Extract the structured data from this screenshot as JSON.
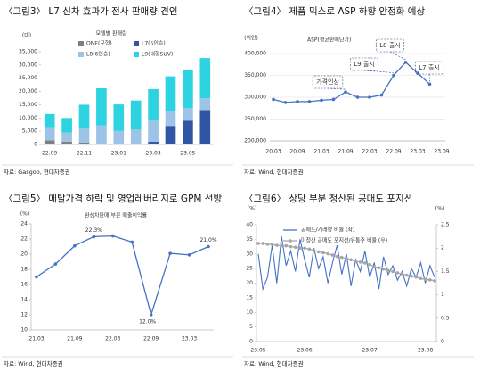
{
  "chart_data": [
    {
      "type": "bar",
      "stacked": true,
      "title": "〈그림3〉 L7 신차 효과가 전사 판매량 견인",
      "unit": "(대)",
      "legend_title": "모델별 판매량",
      "source": "자료: Gasgoo, 현대차증권",
      "categories": [
        "22.09",
        null,
        "22.11",
        null,
        "23.01",
        null,
        "23.03",
        null,
        "23.05",
        null
      ],
      "series": [
        {
          "name": "ONE(구형)",
          "color": "#7f7f7f",
          "values": [
            1500,
            1000,
            700,
            300,
            100,
            0,
            0,
            0,
            0,
            0
          ]
        },
        {
          "name": "L7(5인승)",
          "color": "#2f55a4",
          "values": [
            0,
            0,
            0,
            0,
            0,
            0,
            1000,
            7000,
            9000,
            13000
          ]
        },
        {
          "name": "L8(6인승)",
          "color": "#9dc3e6",
          "values": [
            5000,
            3500,
            5300,
            6900,
            5000,
            5600,
            8000,
            5500,
            4800,
            4500
          ]
        },
        {
          "name": "L9(대형SUV)",
          "color": "#2dd3e0",
          "values": [
            5000,
            5500,
            9000,
            14000,
            10000,
            11000,
            11900,
            13200,
            14500,
            15100
          ]
        }
      ],
      "ylim": [
        0,
        35000
      ],
      "yticks": [
        0,
        {
          "value": 5000,
          "label": "5,000"
        },
        {
          "value": 10000,
          "label": "10,000"
        },
        {
          "value": 15000,
          "label": "15,000"
        },
        {
          "value": 20000,
          "label": "20,000"
        },
        {
          "value": 25000,
          "label": "25,000"
        },
        {
          "value": 30000,
          "label": "30,000"
        },
        {
          "value": 35000,
          "label": "35,000"
        }
      ],
      "grid": false
    },
    {
      "type": "line",
      "title": "〈그림4〉 제품 믹스로 ASP 하향 안정화 예상",
      "unit": "(위안)",
      "source": "자료: Wind, 현대차증권",
      "categories": [
        "20.03",
        null,
        "20.09",
        null,
        "21.03",
        null,
        "21.09",
        null,
        "22.03",
        null,
        "22.09",
        null,
        "23.03",
        null,
        "23.09"
      ],
      "series": [
        {
          "name": "ASP(평균판매단가)",
          "color": "#4472c4",
          "marker": true,
          "values": [
            295000,
            288000,
            290000,
            290000,
            293000,
            295000,
            312000,
            300000,
            300000,
            305000,
            350000,
            380000,
            355000,
            330000,
            null
          ]
        }
      ],
      "annotations": [
        "가격인상",
        "L9 출시",
        "L8 출시",
        "L7 출시"
      ],
      "ylim": [
        200000,
        400000
      ],
      "yticks": [
        {
          "value": 200000,
          "label": "200,000"
        },
        {
          "value": 250000,
          "label": "250,000"
        },
        {
          "value": 300000,
          "label": "300,000"
        },
        {
          "value": 350000,
          "label": "350,000"
        },
        {
          "value": 400000,
          "label": "400,000"
        }
      ],
      "grid": true
    },
    {
      "type": "line",
      "title": "〈그림5〉 메탈가격 하락 및 영업레버리지로 GPM 선방",
      "unit": "(%)",
      "source": "자료: Wind, 현대차증권",
      "categories": [
        "21.03",
        null,
        "21.09",
        null,
        "22.03",
        null,
        "22.09",
        null,
        "23.03",
        null
      ],
      "series": [
        {
          "name": "완성차판매 부문 매출이익률",
          "color": "#4472c4",
          "marker": true,
          "values": [
            17.0,
            18.7,
            21.1,
            22.3,
            22.4,
            21.6,
            12.0,
            20.1,
            19.9,
            21.0
          ],
          "value_labels": [
            null,
            null,
            null,
            "22.3%",
            null,
            null,
            "12.0%",
            null,
            null,
            "21.0%"
          ]
        }
      ],
      "ylim": [
        10,
        24
      ],
      "yticks": [
        10,
        12,
        14,
        16,
        18,
        20,
        22,
        24
      ],
      "grid": false
    },
    {
      "type": "line",
      "title": "〈그림6〉 상당 부분 청산된 공매도 포지션",
      "unit": "(%)",
      "unit2": "(%)",
      "source": "자료: Wind, 현대차증권",
      "categories": [
        "23.05",
        null,
        null,
        null,
        null,
        null,
        null,
        null,
        null,
        null,
        "23.06",
        null,
        null,
        null,
        null,
        null,
        null,
        null,
        null,
        null,
        null,
        null,
        null,
        null,
        "23.07",
        null,
        null,
        null,
        null,
        null,
        null,
        null,
        null,
        null,
        null,
        null,
        "23.08",
        null,
        null
      ],
      "series": [
        {
          "name": "공매도/거래량 비율 (좌)",
          "color": "#4472c4",
          "marker": false,
          "values": [
            30,
            18,
            22,
            33,
            20,
            36,
            26,
            31,
            24,
            35,
            28,
            22,
            32,
            25,
            29,
            20,
            27,
            33,
            23,
            30,
            19,
            28,
            24,
            31,
            22,
            27,
            18,
            29,
            23,
            26,
            21,
            24,
            19,
            25,
            22,
            27,
            20,
            26,
            22
          ]
        },
        {
          "name": "미청산 공매도 포지션/유통주 비율 (우)",
          "color": "#a6a6a6",
          "marker": true,
          "axis": "y2",
          "values": [
            2.1,
            2.1,
            2.08,
            2.08,
            2.06,
            2.05,
            2.05,
            2.03,
            2.02,
            2.0,
            2.0,
            1.98,
            1.95,
            1.92,
            1.9,
            1.88,
            1.85,
            1.82,
            1.8,
            1.78,
            1.75,
            1.72,
            1.7,
            1.68,
            1.65,
            1.6,
            1.58,
            1.55,
            1.52,
            1.5,
            1.47,
            1.45,
            1.42,
            1.4,
            1.38,
            1.35,
            1.33,
            1.32,
            1.3
          ]
        }
      ],
      "ylim": [
        0,
        40
      ],
      "yticks": [
        0,
        5,
        10,
        15,
        20,
        25,
        30,
        35,
        40
      ],
      "y2lim": [
        0,
        2.5
      ],
      "y2ticks": [
        0,
        0.5,
        1,
        1.5,
        2,
        2.5
      ],
      "grid": false
    }
  ]
}
